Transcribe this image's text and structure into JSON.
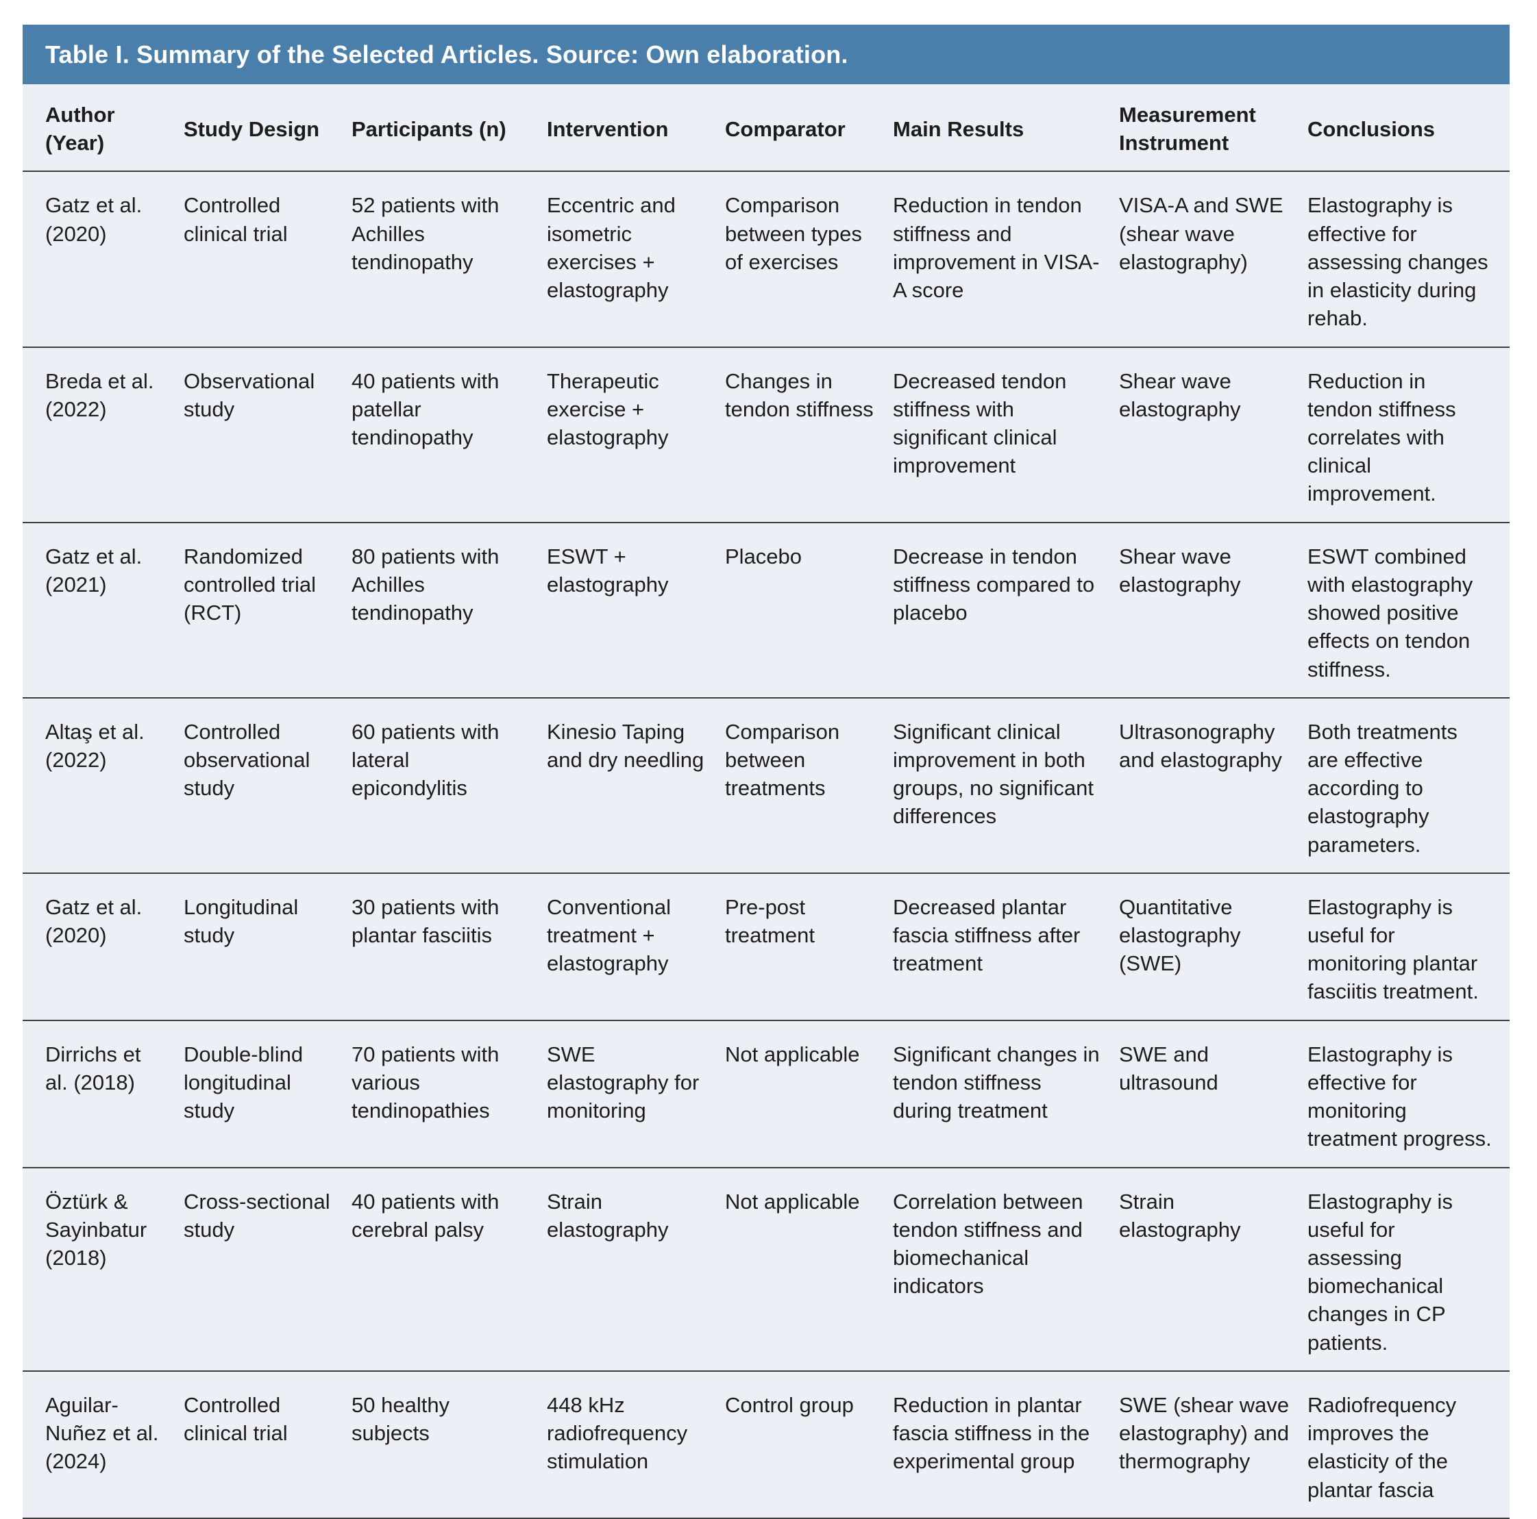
{
  "title_bar": {
    "text": "Table I. Summary of the Selected Articles. Source: Own elaboration."
  },
  "colors": {
    "title_bar_bg": "#4a7fac",
    "title_text": "#ffffff",
    "table_bg": "#ecf0f6",
    "body_text": "#1c1c1c",
    "rule": "#3c3c3c"
  },
  "table": {
    "columns": [
      "Author (Year)",
      "Study Design",
      "Participants (n)",
      "Intervention",
      "Comparator",
      "Main Results",
      "Measurement Instrument",
      "Conclusions"
    ],
    "rows": [
      {
        "author": "Gatz et al. (2020)",
        "study_design": "Controlled clinical trial",
        "participants": "52 patients with Achilles tendinopathy",
        "intervention": "Eccentric and isometric exercises + elastography",
        "comparator": "Comparison between types of exercises",
        "main_results": "Reduction in tendon stiffness and improvement in VISA-A score",
        "measurement_instrument": "VISA-A and SWE (shear wave elastography)",
        "conclusions": "Elastography is effective for assessing changes in elasticity during rehab."
      },
      {
        "author": "Breda et al. (2022)",
        "study_design": "Observational study",
        "participants": "40 patients with patellar tendinopathy",
        "intervention": "Therapeutic exercise + elastography",
        "comparator": "Changes in tendon stiffness",
        "main_results": "Decreased tendon stiffness with significant clinical improvement",
        "measurement_instrument": "Shear wave elastography",
        "conclusions": "Reduction in tendon stiffness correlates with clinical improvement."
      },
      {
        "author": "Gatz et al. (2021)",
        "study_design": "Randomized controlled trial (RCT)",
        "participants": "80 patients with Achilles tendinopathy",
        "intervention": "ESWT + elastography",
        "comparator": "Placebo",
        "main_results": "Decrease in tendon stiffness compared to placebo",
        "measurement_instrument": "Shear wave elastography",
        "conclusions": "ESWT combined with elastography showed positive effects on tendon stiffness."
      },
      {
        "author": "Altaş et al. (2022)",
        "study_design": "Controlled observational study",
        "participants": "60 patients with lateral epicondylitis",
        "intervention": "Kinesio Taping and dry needling",
        "comparator": "Comparison between treatments",
        "main_results": "Significant clinical improvement in both groups, no significant differences",
        "measurement_instrument": "Ultrasonography and elastography",
        "conclusions": "Both treatments are effective according to elastography parameters."
      },
      {
        "author": "Gatz et al. (2020)",
        "study_design": "Longitudinal study",
        "participants": "30 patients with plantar fasciitis",
        "intervention": "Conventional treatment + elastography",
        "comparator": "Pre-post treatment",
        "main_results": "Decreased plantar fascia stiffness after treatment",
        "measurement_instrument": "Quantitative elastography (SWE)",
        "conclusions": "Elastography is useful for monitoring plantar fasciitis treatment."
      },
      {
        "author": "Dirrichs et al. (2018)",
        "study_design": "Double-blind longitudinal study",
        "participants": "70 patients with various tendinopathies",
        "intervention": "SWE elastography for monitoring",
        "comparator": "Not applicable",
        "main_results": "Significant changes in tendon stiffness during treatment",
        "measurement_instrument": "SWE and ultrasound",
        "conclusions": "Elastography is effective for monitoring treatment progress."
      },
      {
        "author": "Öztürk & Sayinbatur (2018)",
        "study_design": "Cross-sectional study",
        "participants": "40 patients with cerebral palsy",
        "intervention": "Strain elastography",
        "comparator": "Not applicable",
        "main_results": "Correlation between tendon stiffness and biomechanical indicators",
        "measurement_instrument": "Strain elastography",
        "conclusions": "Elastography is useful for assessing biomechanical changes in CP patients."
      },
      {
        "author": "Aguilar-Nuñez et al. (2024)",
        "study_design": "Controlled clinical trial",
        "participants": "50 healthy subjects",
        "intervention": "448 kHz radiofrequency stimulation",
        "comparator": "Control group",
        "main_results": "Reduction in plantar fascia stiffness in the experimental group",
        "measurement_instrument": "SWE (shear wave elastography) and thermography",
        "conclusions": "Radiofrequency improves the elasticity of the plantar fascia"
      }
    ]
  }
}
